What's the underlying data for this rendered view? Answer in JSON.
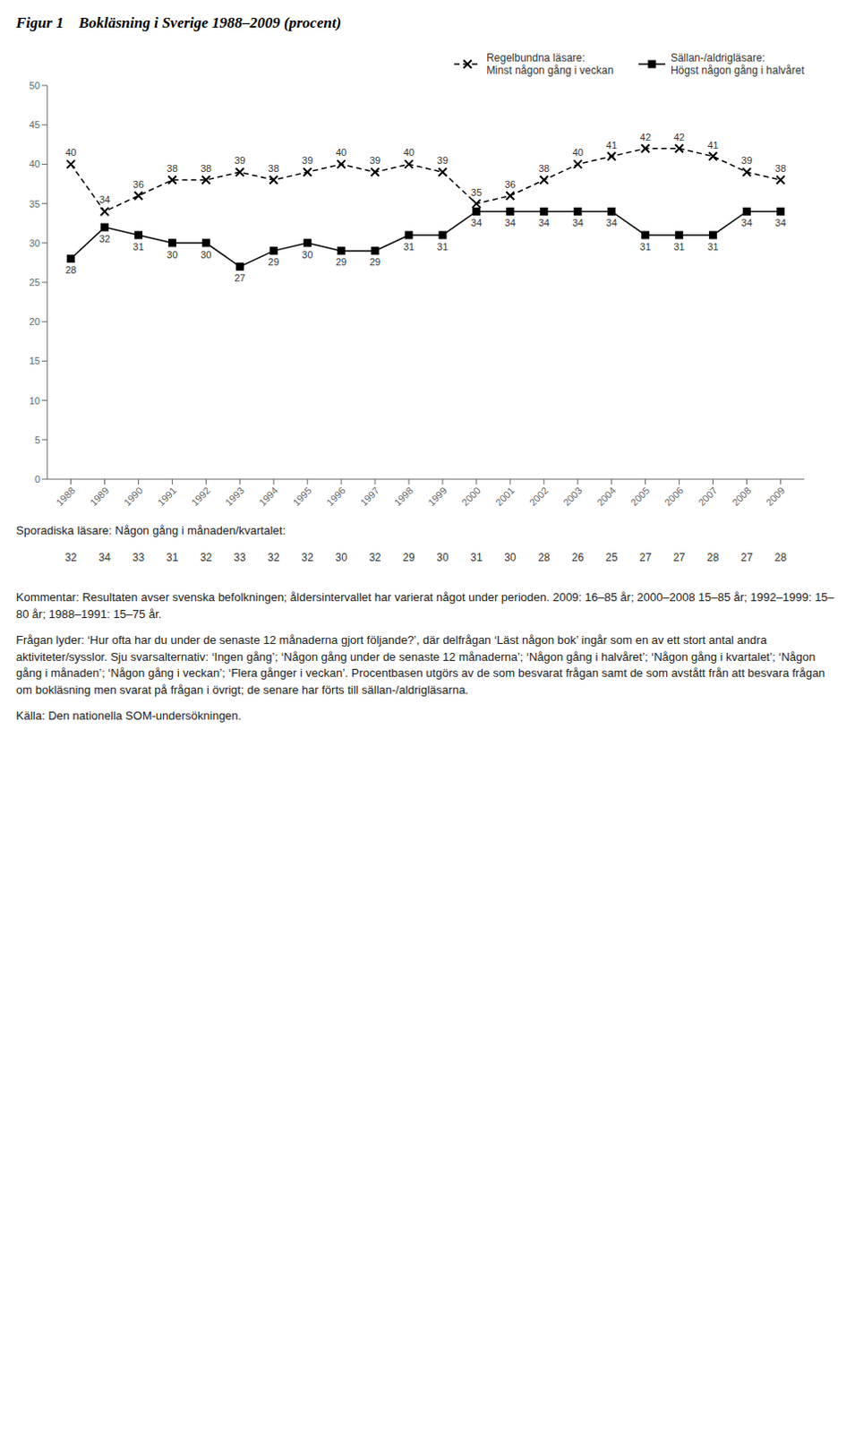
{
  "chart_data": {
    "type": "line",
    "title": "Figur 1    Bokläsning i Sverige 1988–2009 (procent)",
    "x": [
      1988,
      1989,
      1990,
      1991,
      1992,
      1993,
      1994,
      1995,
      1996,
      1997,
      1998,
      1999,
      2000,
      2001,
      2002,
      2003,
      2004,
      2005,
      2006,
      2007,
      2008,
      2009
    ],
    "series": [
      {
        "name": "Regelbundna läsare:\nMinst någon gång i veckan",
        "color": "#000000",
        "marker": "x",
        "line_style": "dashed",
        "values": [
          40,
          34,
          36,
          38,
          38,
          39,
          38,
          39,
          40,
          39,
          40,
          39,
          35,
          36,
          38,
          40,
          41,
          42,
          42,
          41,
          39,
          38
        ]
      },
      {
        "name": "Sällan-/aldrigläsare:\nHögst någon gång i halvåret",
        "color": "#000000",
        "marker": "square",
        "line_style": "solid",
        "values": [
          28,
          32,
          31,
          30,
          30,
          27,
          29,
          30,
          29,
          29,
          31,
          31,
          34,
          34,
          34,
          34,
          34,
          31,
          31,
          31,
          34,
          34
        ]
      }
    ],
    "sporadiska": {
      "label": "Sporadiska läsare: Någon gång i månaden/kvartalet:",
      "values": [
        32,
        34,
        33,
        31,
        32,
        33,
        32,
        32,
        30,
        32,
        29,
        30,
        31,
        30,
        28,
        26,
        25,
        27,
        27,
        28,
        27,
        28
      ]
    },
    "notes": [
      "Kommentar: Resultaten avser svenska befolkningen; åldersintervallet har varierat något under perioden. 2009: 16–85 år; 2000–2008 15–85 år; 1992–1999: 15–80 år; 1988–1991: 15–75 år.",
      "Frågan lyder: ‘Hur ofta har du under de senaste 12 månaderna gjort följande?’, där delfrågan ‘Läst någon bok’ ingår som en av ett stort antal andra aktiviteter/sysslor. Sju svarsalternativ: ‘Ingen gång’; ‘Någon gång under de senaste 12 månaderna’; ‘Någon gång i halvåret’; ‘Någon gång i kvartalet’; ‘Någon gång i månaden’; ‘Någon gång i veckan’; ‘Flera gånger i veckan’. Procentbasen utgörs av de som besvarat frågan samt de som avstått från att besvara frågan om bokläsning men svarat på frågan i övrigt; de senare har förts till sällan-/aldrigläsarna.",
      "Källa: Den nationella SOM-undersökningen."
    ],
    "xlim": [
      1987.3,
      2009.7
    ],
    "xticks": [
      1988,
      1989,
      1990,
      1991,
      1992,
      1993,
      1994,
      1995,
      1996,
      1997,
      1998,
      1999,
      2000,
      2001,
      2002,
      2003,
      2004,
      2005,
      2006,
      2007,
      2008,
      2009
    ],
    "ylim": [
      0,
      50
    ],
    "yticks": [
      0,
      5,
      10,
      15,
      20,
      25,
      30,
      35,
      40,
      45,
      50
    ],
    "grid": false,
    "legend": "upper right",
    "data_labels": true
  }
}
